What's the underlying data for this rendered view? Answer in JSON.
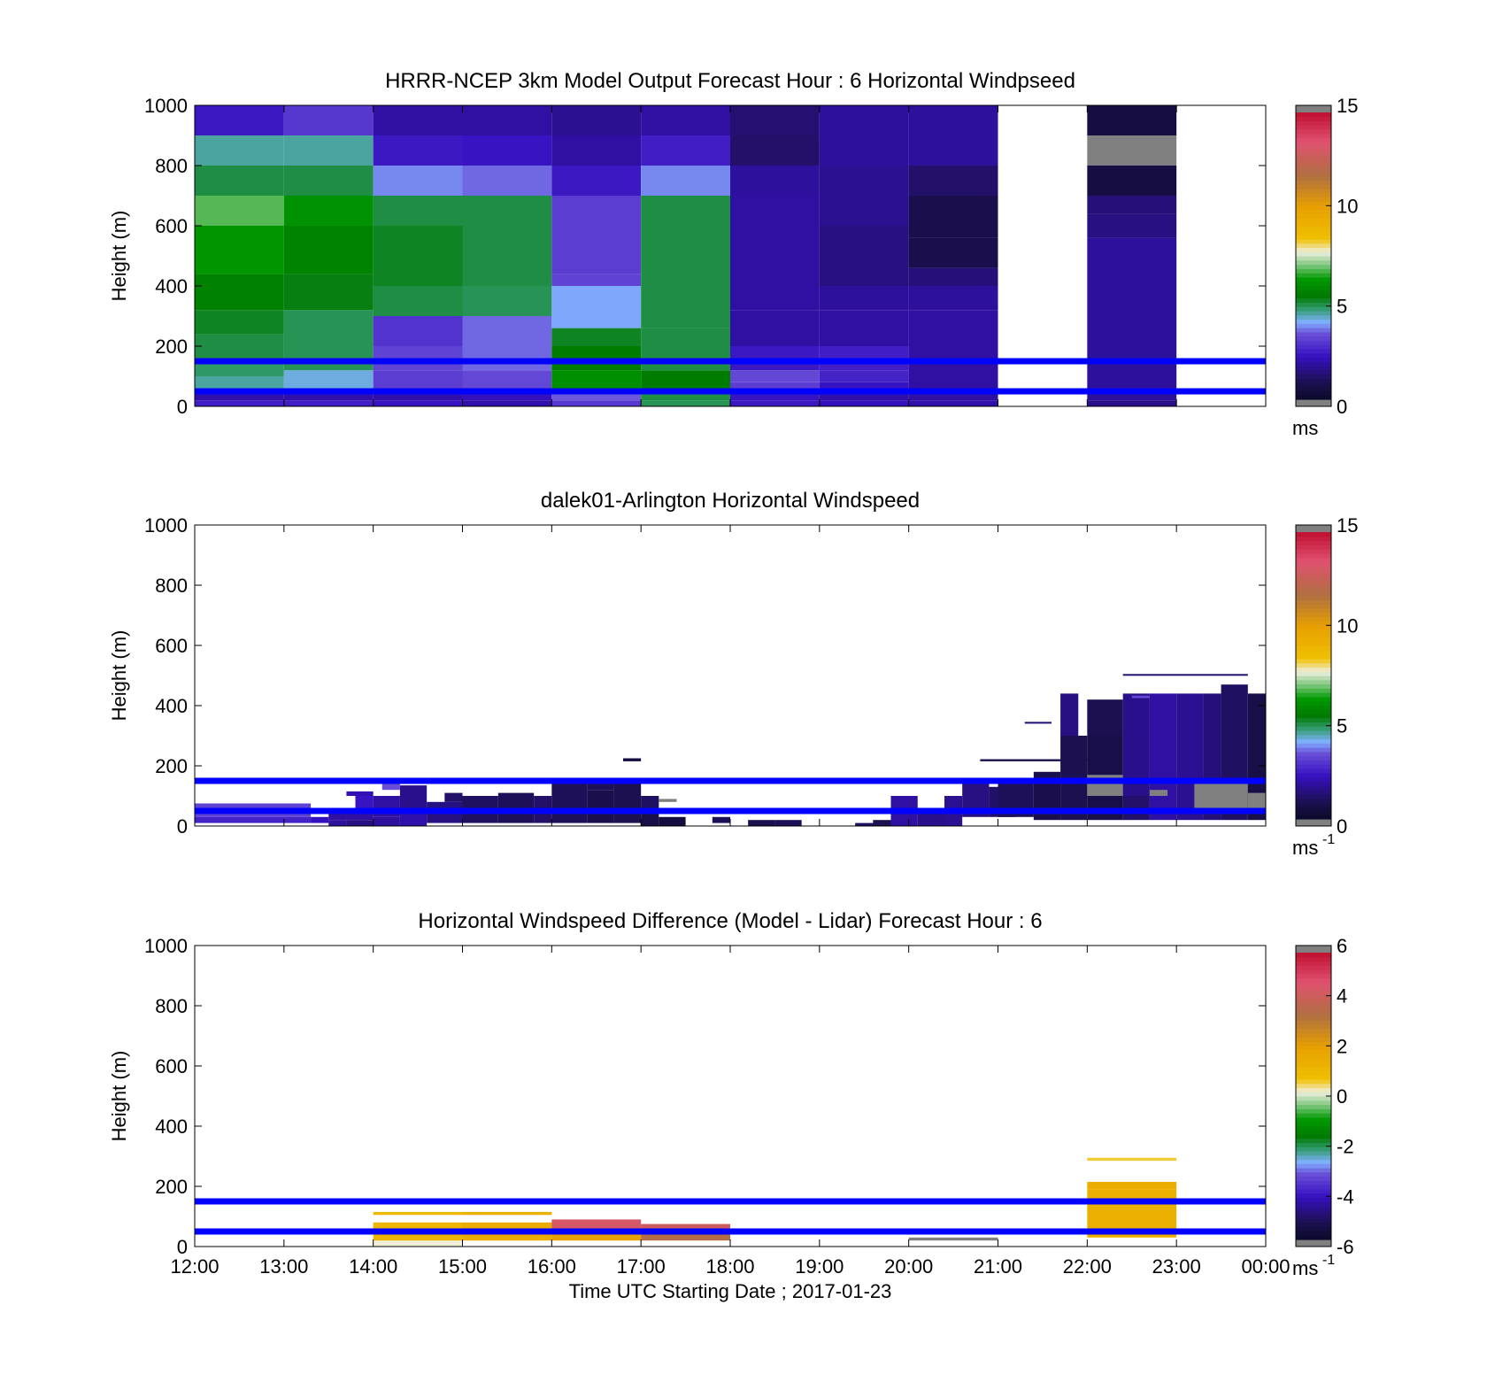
{
  "figure": {
    "xlabel": "Time UTC  Starting Date ; 2017-01-23",
    "x_tick_labels": [
      "12:00",
      "13:00",
      "14:00",
      "15:00",
      "16:00",
      "17:00",
      "18:00",
      "19:00",
      "20:00",
      "21:00",
      "22:00",
      "23:00",
      "00:00"
    ],
    "reference_lines_m": [
      50,
      150
    ],
    "reference_line_color": "#0000ff",
    "missing_color": "#808080"
  },
  "colormap": {
    "stops": [
      [
        0.0,
        "#0a0a2a"
      ],
      [
        0.06,
        "#1c1050"
      ],
      [
        0.15,
        "#3510c0"
      ],
      [
        0.23,
        "#6a50d8"
      ],
      [
        0.27,
        "#80b0ff"
      ],
      [
        0.31,
        "#3aa080"
      ],
      [
        0.36,
        "#007a00"
      ],
      [
        0.42,
        "#009900"
      ],
      [
        0.47,
        "#80c880"
      ],
      [
        0.515,
        "#f0f0e0"
      ],
      [
        0.56,
        "#f0c000"
      ],
      [
        0.67,
        "#e8a000"
      ],
      [
        0.78,
        "#b07040"
      ],
      [
        0.9,
        "#e05070"
      ],
      [
        1.0,
        "#c01030"
      ]
    ]
  },
  "chart_data": [
    {
      "type": "heatmap",
      "title": "HRRR-NCEP 3km Model Output   Forecast Hour : 6 Horizontal Windpseed",
      "ylabel": "Height (m)",
      "y_tick_labels": [
        "0",
        "200",
        "400",
        "600",
        "800",
        "1000"
      ],
      "ylim": [
        0,
        1000
      ],
      "x_range_hours": [
        12,
        24
      ],
      "colorbar": {
        "min": 0,
        "max": 15,
        "ticks": [
          "0",
          "5",
          "10",
          "15"
        ],
        "unit": "ms"
      },
      "columns": [
        {
          "start": 12,
          "end": 13,
          "cells": [
            [
              0,
              20,
              2.5
            ],
            [
              20,
              40,
              2.0
            ],
            [
              40,
              60,
              3.2
            ],
            [
              60,
              100,
              4.5
            ],
            [
              100,
              160,
              4.8
            ],
            [
              160,
              240,
              5.0
            ],
            [
              240,
              320,
              5.2
            ],
            [
              320,
              440,
              5.6
            ],
            [
              440,
              600,
              6.2
            ],
            [
              600,
              700,
              6.8
            ],
            [
              700,
              800,
              5.0
            ],
            [
              800,
              900,
              4.5
            ],
            [
              900,
              1000,
              2.4
            ]
          ]
        },
        {
          "start": 13,
          "end": 14,
          "cells": [
            [
              0,
              20,
              2.5
            ],
            [
              20,
              40,
              2.0
            ],
            [
              40,
              60,
              3.0
            ],
            [
              60,
              120,
              4.2
            ],
            [
              120,
              320,
              4.9
            ],
            [
              320,
              440,
              5.3
            ],
            [
              440,
              600,
              5.7
            ],
            [
              600,
              700,
              6.1
            ],
            [
              700,
              800,
              5.0
            ],
            [
              800,
              900,
              4.5
            ],
            [
              900,
              1000,
              3.0
            ]
          ]
        },
        {
          "start": 14,
          "end": 15,
          "cells": [
            [
              0,
              20,
              2.3
            ],
            [
              20,
              40,
              2.0
            ],
            [
              40,
              120,
              3.1
            ],
            [
              120,
              200,
              3.2
            ],
            [
              200,
              300,
              2.9
            ],
            [
              300,
              400,
              5.0
            ],
            [
              400,
              600,
              5.2
            ],
            [
              600,
              700,
              5.0
            ],
            [
              700,
              800,
              3.8
            ],
            [
              800,
              900,
              2.4
            ],
            [
              900,
              1000,
              1.9
            ]
          ]
        },
        {
          "start": 15,
          "end": 16,
          "cells": [
            [
              0,
              20,
              2.0
            ],
            [
              20,
              40,
              2.2
            ],
            [
              40,
              120,
              3.3
            ],
            [
              120,
              300,
              3.6
            ],
            [
              300,
              400,
              4.9
            ],
            [
              400,
              700,
              5.0
            ],
            [
              700,
              800,
              3.6
            ],
            [
              800,
              900,
              2.3
            ],
            [
              900,
              1000,
              1.9
            ]
          ]
        },
        {
          "start": 16,
          "end": 17,
          "cells": [
            [
              0,
              20,
              3.0
            ],
            [
              20,
              60,
              3.5
            ],
            [
              60,
              120,
              6.0
            ],
            [
              120,
              200,
              5.5
            ],
            [
              200,
              260,
              5.2
            ],
            [
              260,
              400,
              4.0
            ],
            [
              400,
              440,
              3.2
            ],
            [
              440,
              700,
              3.1
            ],
            [
              700,
              800,
              2.4
            ],
            [
              800,
              900,
              1.9
            ],
            [
              900,
              1000,
              1.7
            ]
          ]
        },
        {
          "start": 17,
          "end": 18,
          "cells": [
            [
              0,
              20,
              4.9
            ],
            [
              20,
              60,
              5.0
            ],
            [
              60,
              120,
              5.5
            ],
            [
              120,
              260,
              5.0
            ],
            [
              260,
              700,
              5.0
            ],
            [
              700,
              800,
              3.8
            ],
            [
              800,
              900,
              2.5
            ],
            [
              900,
              1000,
              1.9
            ]
          ]
        },
        {
          "start": 18,
          "end": 19,
          "cells": [
            [
              0,
              20,
              2.4
            ],
            [
              20,
              40,
              2.3
            ],
            [
              40,
              80,
              3.1
            ],
            [
              80,
              120,
              3.3
            ],
            [
              120,
              200,
              2.4
            ],
            [
              200,
              320,
              1.9
            ],
            [
              320,
              700,
              1.9
            ],
            [
              700,
              800,
              1.8
            ],
            [
              800,
              900,
              1.2
            ],
            [
              900,
              1000,
              1.3
            ]
          ]
        },
        {
          "start": 19,
          "end": 20,
          "cells": [
            [
              0,
              20,
              2.2
            ],
            [
              20,
              40,
              2.0
            ],
            [
              40,
              80,
              2.3
            ],
            [
              80,
              120,
              2.6
            ],
            [
              120,
              200,
              2.5
            ],
            [
              200,
              320,
              1.9
            ],
            [
              320,
              400,
              1.8
            ],
            [
              400,
              600,
              1.5
            ],
            [
              600,
              800,
              1.7
            ],
            [
              800,
              1000,
              1.8
            ]
          ]
        },
        {
          "start": 20,
          "end": 21,
          "cells": [
            [
              0,
              20,
              2.0
            ],
            [
              20,
              320,
              1.9
            ],
            [
              320,
              400,
              1.8
            ],
            [
              400,
              460,
              1.4
            ],
            [
              460,
              560,
              0.8
            ],
            [
              560,
              700,
              0.8
            ],
            [
              700,
              800,
              1.2
            ],
            [
              800,
              1000,
              1.8
            ]
          ]
        },
        {
          "start": 22,
          "end": 23,
          "cells": [
            [
              0,
              20,
              1.6
            ],
            [
              20,
              560,
              1.8
            ],
            [
              560,
              640,
              1.5
            ],
            [
              640,
              700,
              1.4
            ],
            [
              700,
              800,
              0.6
            ],
            [
              800,
              900,
              -1
            ],
            [
              900,
              1000,
              0.6
            ]
          ]
        }
      ]
    },
    {
      "type": "heatmap",
      "title": "dalek01-Arlington  Horizontal Windspeed",
      "ylabel": "Height (m)",
      "y_tick_labels": [
        "0",
        "200",
        "400",
        "600",
        "800",
        "1000"
      ],
      "ylim": [
        0,
        1000
      ],
      "x_range_hours": [
        12,
        24
      ],
      "colorbar": {
        "min": 0,
        "max": 15,
        "ticks": [
          "0",
          "5",
          "10",
          "15"
        ],
        "unit": "ms",
        "unit_exp": "-1"
      },
      "bins": [
        [
          12.0,
          13.3,
          30,
          75,
          3.2
        ],
        [
          12.0,
          13.3,
          10,
          30,
          2.6
        ],
        [
          13.3,
          13.5,
          10,
          30,
          2.2
        ],
        [
          13.5,
          13.7,
          0,
          20,
          1.8
        ],
        [
          13.7,
          14.0,
          0,
          20,
          1.5
        ],
        [
          13.5,
          14.0,
          20,
          60,
          1.9
        ],
        [
          13.8,
          14.0,
          60,
          100,
          2.3
        ],
        [
          13.7,
          14.0,
          100,
          115,
          2.1
        ],
        [
          14.0,
          14.3,
          0,
          30,
          1.8
        ],
        [
          14.0,
          14.3,
          30,
          100,
          1.9
        ],
        [
          14.3,
          14.6,
          0,
          40,
          2.0
        ],
        [
          14.3,
          14.6,
          40,
          135,
          1.6
        ],
        [
          14.1,
          14.3,
          120,
          160,
          3.4
        ],
        [
          14.6,
          15.0,
          10,
          80,
          1.5
        ],
        [
          14.8,
          15.0,
          80,
          110,
          1.2
        ],
        [
          15.0,
          15.4,
          10,
          100,
          1.1
        ],
        [
          15.4,
          15.8,
          10,
          110,
          1.0
        ],
        [
          15.8,
          16.0,
          10,
          100,
          1.2
        ],
        [
          16.0,
          16.4,
          10,
          140,
          1.0
        ],
        [
          16.0,
          16.4,
          140,
          160,
          1.4
        ],
        [
          16.4,
          16.7,
          10,
          120,
          0.8
        ],
        [
          16.4,
          16.7,
          120,
          160,
          1.0
        ],
        [
          16.7,
          17.0,
          10,
          150,
          0.9
        ],
        [
          16.8,
          17.0,
          215,
          225,
          0.5
        ],
        [
          17.0,
          17.2,
          50,
          100,
          1.1
        ],
        [
          17.0,
          17.2,
          0,
          50,
          0.7
        ],
        [
          17.2,
          17.5,
          0,
          30,
          0.5
        ],
        [
          17.2,
          17.4,
          80,
          90,
          -1
        ],
        [
          17.8,
          18.0,
          10,
          30,
          1.0
        ],
        [
          18.2,
          18.5,
          0,
          20,
          0.8
        ],
        [
          18.5,
          18.8,
          0,
          20,
          1.0
        ],
        [
          19.4,
          20.0,
          0,
          10,
          1.1
        ],
        [
          19.6,
          19.8,
          0,
          20,
          0.9
        ],
        [
          19.8,
          20.1,
          0,
          100,
          1.9
        ],
        [
          20.1,
          20.4,
          0,
          60,
          1.6
        ],
        [
          20.4,
          20.6,
          0,
          100,
          1.7
        ],
        [
          20.6,
          20.9,
          30,
          150,
          1.5
        ],
        [
          20.9,
          21.2,
          30,
          130,
          1.2
        ],
        [
          21.0,
          21.4,
          30,
          140,
          1.0
        ],
        [
          21.4,
          21.7,
          20,
          180,
          0.8
        ],
        [
          21.7,
          22.0,
          20,
          300,
          0.9
        ],
        [
          21.7,
          21.9,
          300,
          440,
          1.5
        ],
        [
          20.8,
          22.0,
          215,
          222,
          0.9
        ],
        [
          21.3,
          21.6,
          340,
          346,
          1.4
        ],
        [
          22.0,
          22.4,
          20,
          300,
          0.7
        ],
        [
          22.0,
          22.4,
          300,
          420,
          0.9
        ],
        [
          22.0,
          22.4,
          100,
          170,
          -1
        ],
        [
          22.4,
          22.7,
          20,
          100,
          1.2
        ],
        [
          22.4,
          22.7,
          100,
          440,
          1.6
        ],
        [
          22.7,
          23.0,
          20,
          440,
          1.9
        ],
        [
          22.7,
          22.9,
          100,
          120,
          -1
        ],
        [
          23.0,
          23.3,
          20,
          440,
          1.7
        ],
        [
          23.3,
          23.5,
          20,
          440,
          1.4
        ],
        [
          23.5,
          23.8,
          20,
          470,
          1.1
        ],
        [
          23.2,
          23.8,
          50,
          150,
          -1
        ],
        [
          23.8,
          24.0,
          20,
          440,
          0.7
        ],
        [
          23.8,
          24.0,
          40,
          110,
          -1
        ],
        [
          22.4,
          23.8,
          500,
          505,
          1.3
        ],
        [
          22.5,
          22.7,
          425,
          433,
          3.3
        ]
      ]
    },
    {
      "type": "heatmap",
      "title": "Horizontal Windspeed Difference (Model - Lidar) Forecast Hour : 6",
      "ylabel": "Height (m)",
      "y_tick_labels": [
        "0",
        "200",
        "400",
        "600",
        "800",
        "1000"
      ],
      "ylim": [
        0,
        1000
      ],
      "x_range_hours": [
        12,
        24
      ],
      "colorbar": {
        "min": -6,
        "max": 6,
        "ticks": [
          "-6",
          "-4",
          "-2",
          "0",
          "2",
          "4",
          "6"
        ],
        "unit": "ms",
        "unit_exp": "-1"
      },
      "bins": [
        [
          14.0,
          15.0,
          0,
          20,
          0.2
        ],
        [
          14.0,
          15.0,
          20,
          80,
          1.2
        ],
        [
          14.0,
          15.0,
          105,
          115,
          1.0
        ],
        [
          15.0,
          16.0,
          20,
          80,
          1.6
        ],
        [
          15.0,
          16.0,
          105,
          115,
          1.4
        ],
        [
          16.0,
          17.0,
          20,
          60,
          2.0
        ],
        [
          16.0,
          17.0,
          60,
          90,
          4.5
        ],
        [
          17.0,
          18.0,
          20,
          60,
          3.5
        ],
        [
          17.0,
          18.0,
          60,
          75,
          4.2
        ],
        [
          20.0,
          21.0,
          20,
          30,
          -0.5
        ],
        [
          22.0,
          23.0,
          30,
          190,
          1.4
        ],
        [
          22.0,
          23.0,
          190,
          215,
          1.5
        ],
        [
          22.0,
          23.0,
          285,
          295,
          0.6
        ]
      ]
    }
  ]
}
